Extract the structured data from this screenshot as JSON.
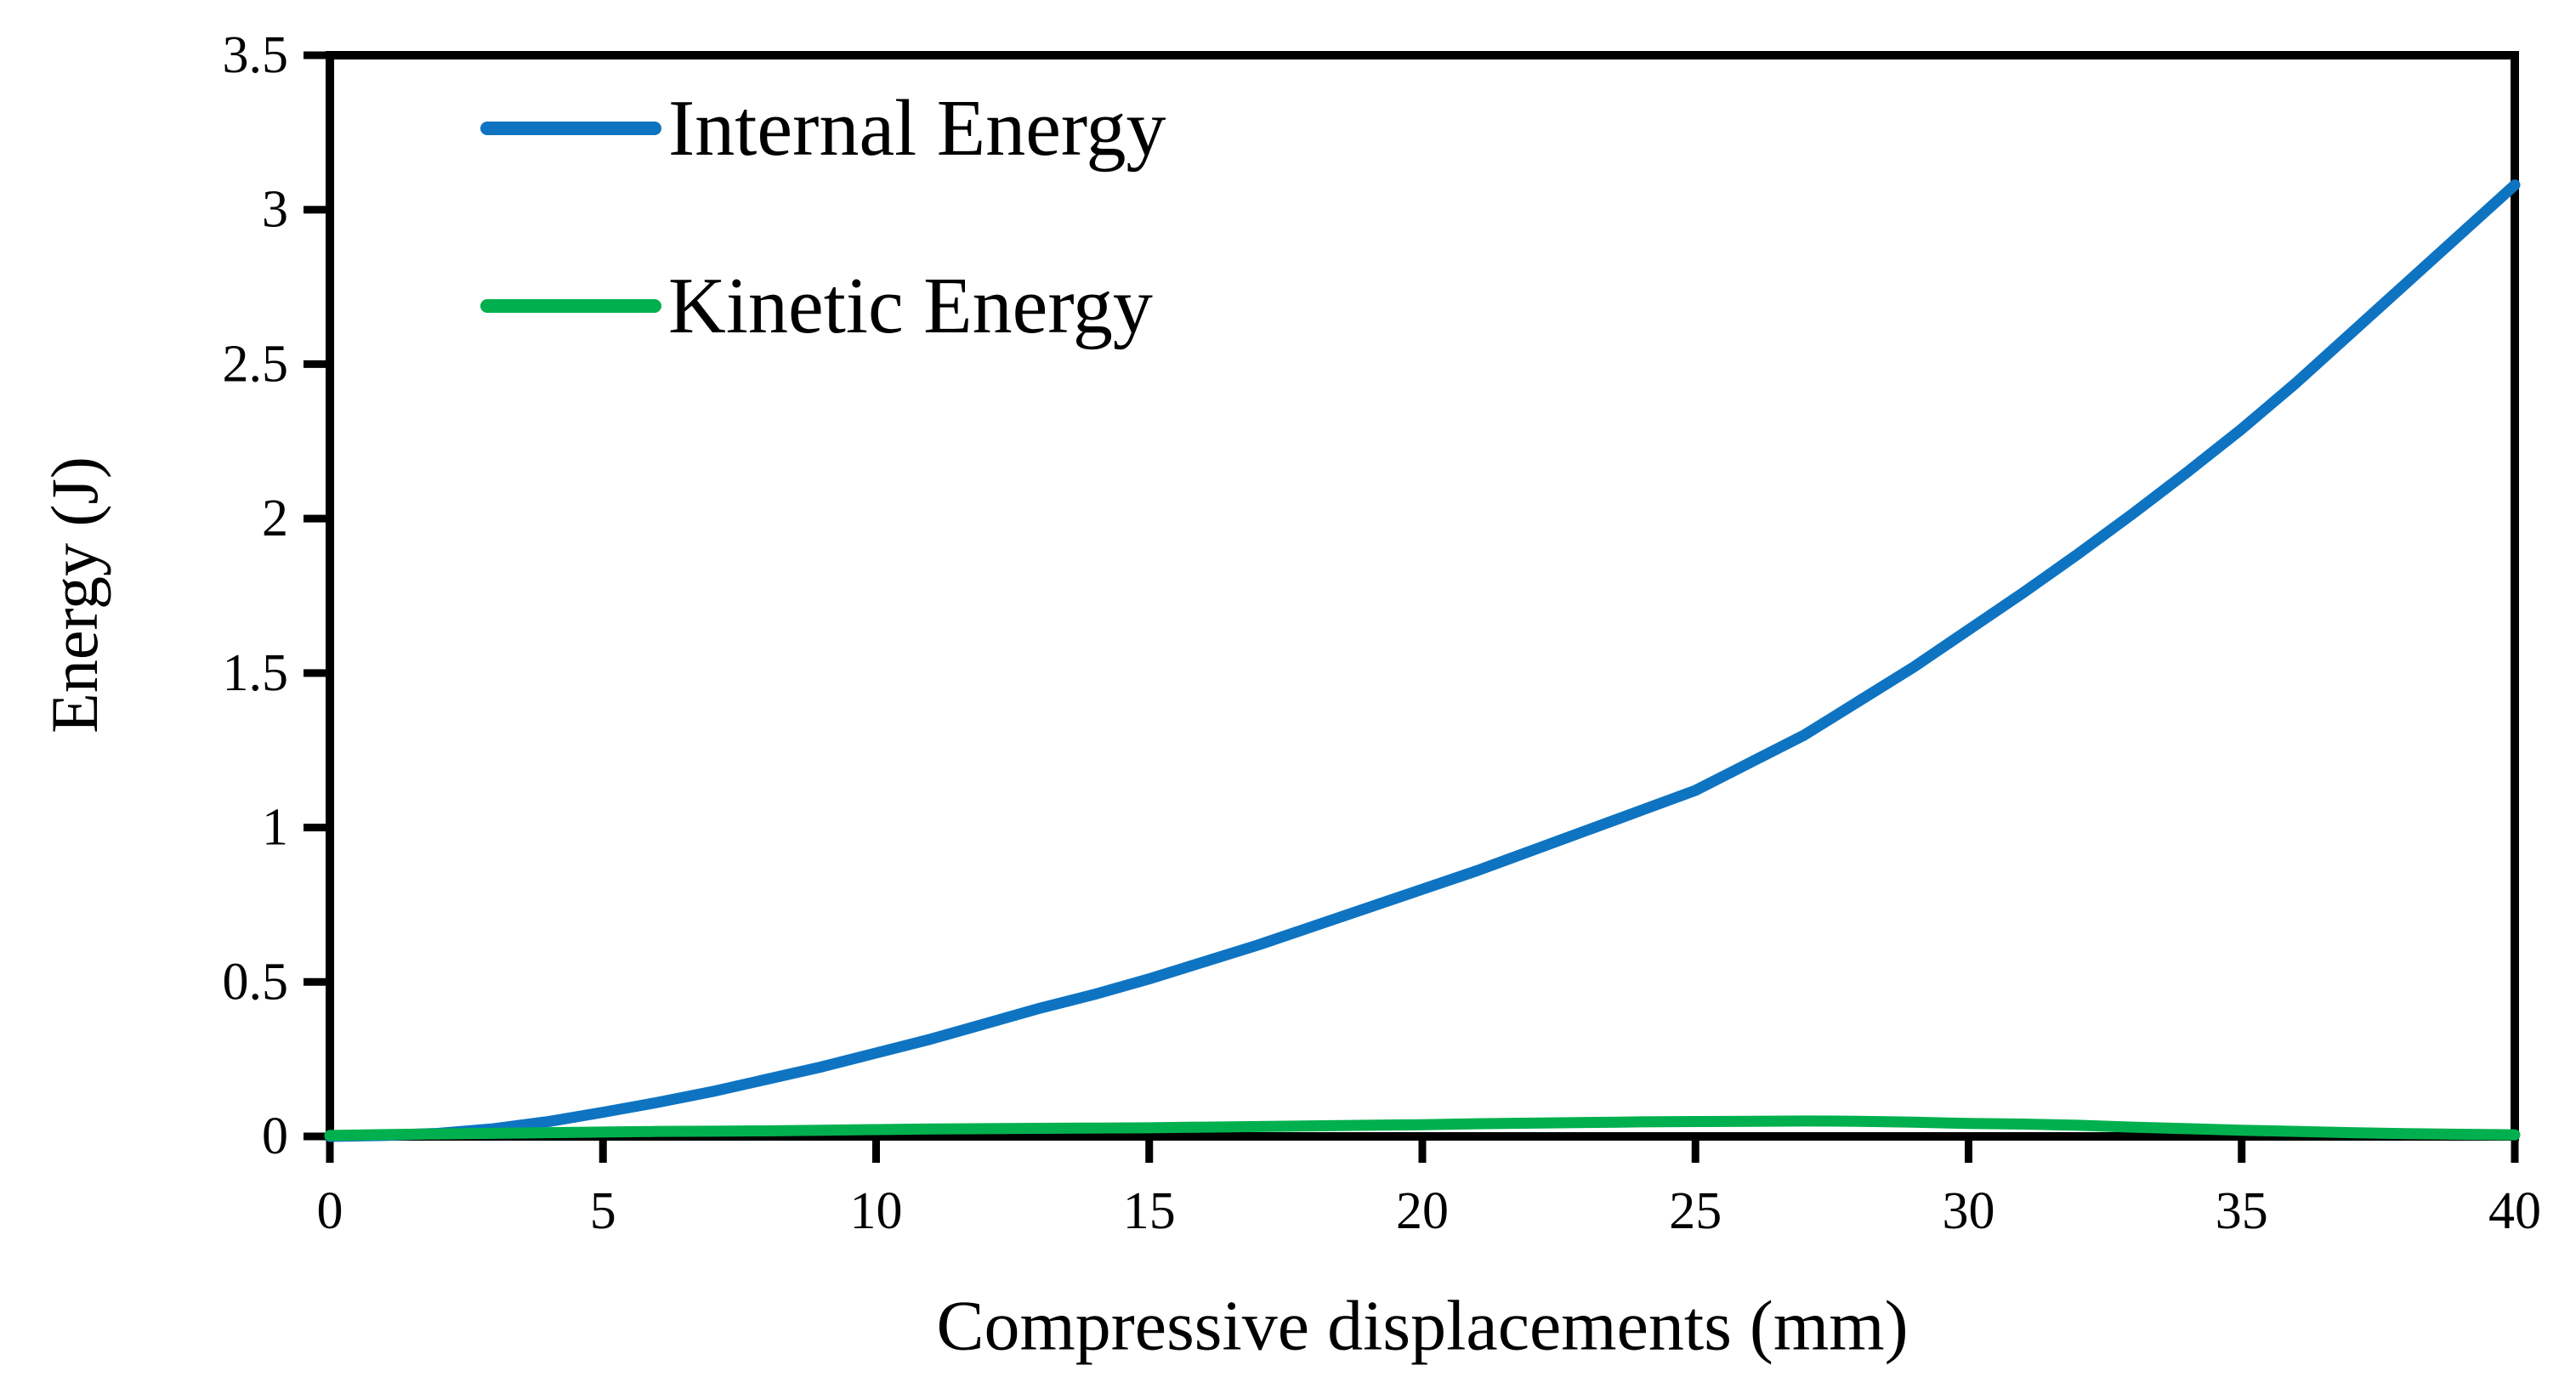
{
  "chart_data": {
    "type": "line",
    "title": "",
    "xlabel": "Compressive displacements (mm)",
    "ylabel": "Energy (J)",
    "xlim": [
      0,
      40
    ],
    "ylim": [
      0,
      3.5
    ],
    "x_ticks": [
      0,
      5,
      10,
      15,
      20,
      25,
      30,
      35,
      40
    ],
    "x_tick_labels": [
      "0",
      "5",
      "10",
      "15",
      "20",
      "25",
      "30",
      "35",
      "40"
    ],
    "y_ticks": [
      0,
      0.5,
      1,
      1.5,
      2,
      2.5,
      3,
      3.5
    ],
    "y_tick_labels": [
      "0",
      "0.5",
      "1",
      "1.5",
      "2",
      "2.5",
      "3",
      "3.5"
    ],
    "grid": false,
    "legend_position": "top-left-inside",
    "axis_color": "#000000",
    "series": [
      {
        "name": "Internal Energy",
        "color": "#0e74c2",
        "x": [
          0,
          1,
          2,
          3,
          4,
          5,
          6,
          7,
          8,
          9,
          10,
          11,
          12,
          13,
          14,
          15,
          16,
          17,
          18,
          19,
          20,
          21,
          22,
          23,
          24,
          25,
          26,
          27,
          28,
          29,
          30,
          31,
          32,
          33,
          34,
          35,
          36,
          37,
          38,
          39,
          40
        ],
        "y": [
          0,
          0.003,
          0.01,
          0.025,
          0.048,
          0.078,
          0.11,
          0.145,
          0.185,
          0.225,
          0.27,
          0.315,
          0.365,
          0.415,
          0.46,
          0.51,
          0.565,
          0.62,
          0.68,
          0.74,
          0.8,
          0.86,
          0.925,
          0.99,
          1.055,
          1.12,
          1.21,
          1.3,
          1.41,
          1.52,
          1.64,
          1.76,
          1.885,
          2.015,
          2.15,
          2.29,
          2.44,
          2.6,
          2.76,
          2.92,
          3.08
        ]
      },
      {
        "name": "Kinetic Energy",
        "color": "#00b04e",
        "x": [
          0,
          1,
          2,
          3,
          4,
          5,
          6,
          7,
          8,
          9,
          10,
          11,
          12,
          13,
          14,
          15,
          16,
          17,
          18,
          19,
          20,
          21,
          22,
          23,
          24,
          25,
          26,
          27,
          28,
          29,
          30,
          31,
          32,
          33,
          34,
          35,
          36,
          37,
          38,
          39,
          40
        ],
        "y": [
          0.003,
          0.006,
          0.008,
          0.01,
          0.012,
          0.014,
          0.016,
          0.017,
          0.018,
          0.02,
          0.022,
          0.024,
          0.025,
          0.026,
          0.027,
          0.028,
          0.03,
          0.032,
          0.034,
          0.036,
          0.038,
          0.041,
          0.043,
          0.045,
          0.047,
          0.048,
          0.049,
          0.05,
          0.049,
          0.046,
          0.042,
          0.04,
          0.036,
          0.03,
          0.025,
          0.02,
          0.016,
          0.012,
          0.009,
          0.007,
          0.005
        ]
      }
    ]
  }
}
